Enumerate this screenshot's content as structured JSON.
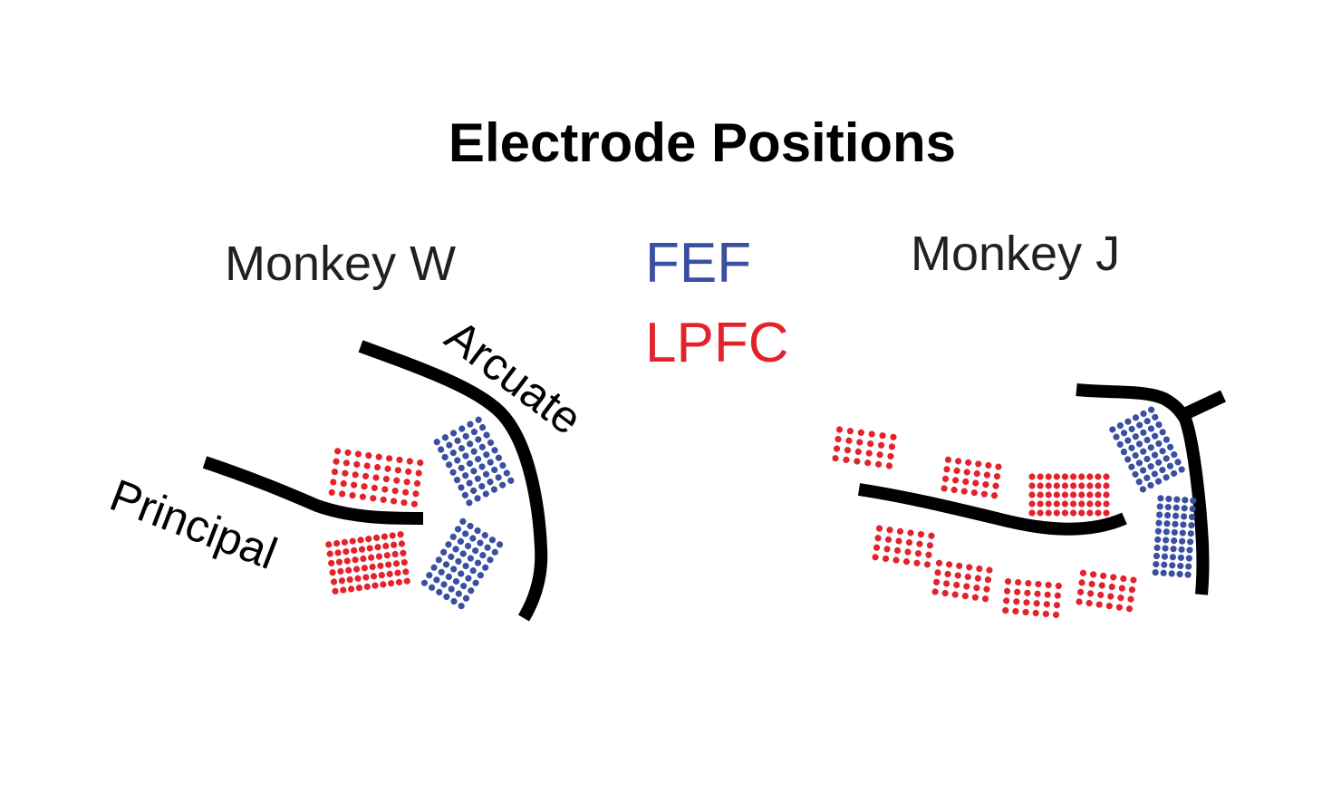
{
  "title": "Electrode Positions",
  "monkeys": {
    "w": {
      "label": "Monkey W"
    },
    "j": {
      "label": "Monkey J"
    }
  },
  "legend": {
    "fef": {
      "label": "FEF",
      "color": "#3a4fa0"
    },
    "lpfc": {
      "label": "LPFC",
      "color": "#e3232c"
    }
  },
  "sulci": {
    "arcuate": "Arcuate",
    "principal": "Principal"
  },
  "arrays": {
    "monkey_w": [
      {
        "region": "lpfc"
      },
      {
        "region": "lpfc"
      },
      {
        "region": "fef"
      },
      {
        "region": "fef"
      }
    ],
    "monkey_j": [
      {
        "region": "lpfc"
      },
      {
        "region": "lpfc"
      },
      {
        "region": "lpfc"
      },
      {
        "region": "lpfc"
      },
      {
        "region": "lpfc"
      },
      {
        "region": "lpfc"
      },
      {
        "region": "lpfc"
      },
      {
        "region": "fef"
      },
      {
        "region": "fef"
      }
    ]
  }
}
